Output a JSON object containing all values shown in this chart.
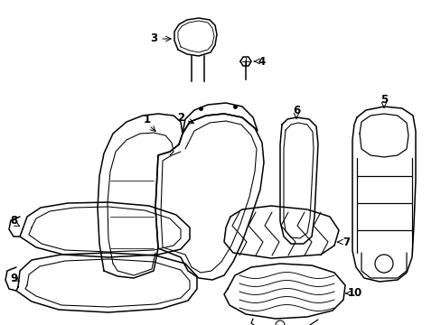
{
  "background_color": "#ffffff",
  "line_color": "#000000",
  "line_width": 1.1,
  "label_fontsize": 8.5,
  "figsize": [
    4.89,
    3.6
  ],
  "dpi": 100
}
